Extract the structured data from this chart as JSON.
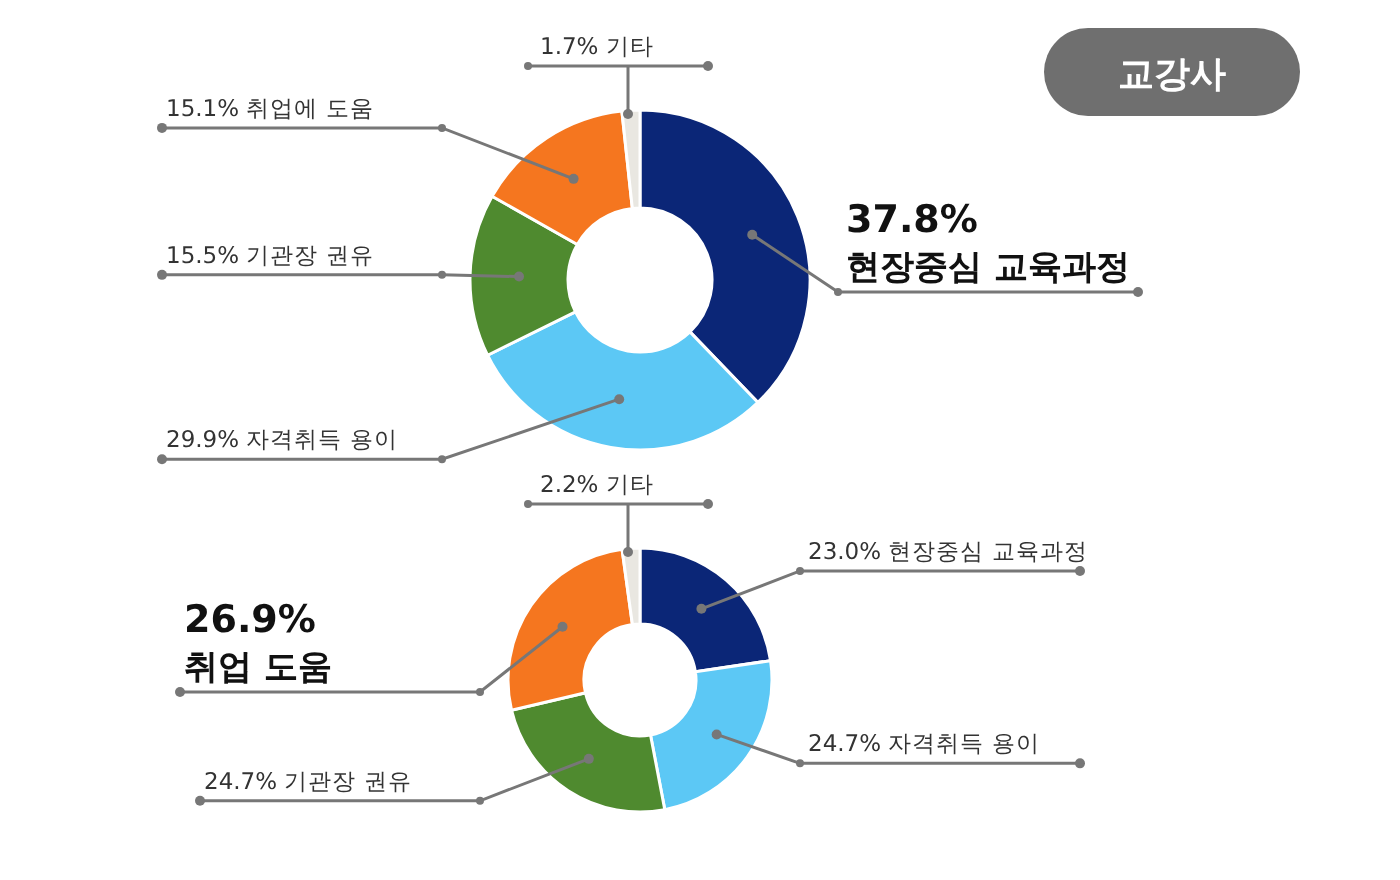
{
  "chart_data": [
    {
      "type": "donut",
      "categories": [
        "현장중심 교육과정",
        "자격취득 용이",
        "기관장 권유",
        "취업에 도움",
        "기타"
      ],
      "values": [
        37.8,
        29.9,
        15.5,
        15.1,
        1.7
      ],
      "value_labels": [
        "37.8%",
        "29.9%",
        "15.5%",
        "15.1%",
        "1.7%"
      ],
      "colors": [
        "#0b2677",
        "#5cc8f5",
        "#4f8a2f",
        "#f5761f",
        "#e9e7e1"
      ],
      "annotations": [
        "교강사"
      ]
    },
    {
      "type": "donut",
      "categories": [
        "현장중심 교육과정",
        "자격취득 용이",
        "기관장 권유",
        "취업 도움",
        "기타"
      ],
      "values": [
        23.0,
        24.7,
        24.7,
        26.9,
        2.2
      ],
      "value_labels": [
        "23.0%",
        "24.7%",
        "24.7%",
        "26.9%",
        "2.2%"
      ],
      "colors": [
        "#0b2677",
        "#5cc8f5",
        "#4f8a2f",
        "#f5761f",
        "#e9e7e1"
      ]
    }
  ]
}
